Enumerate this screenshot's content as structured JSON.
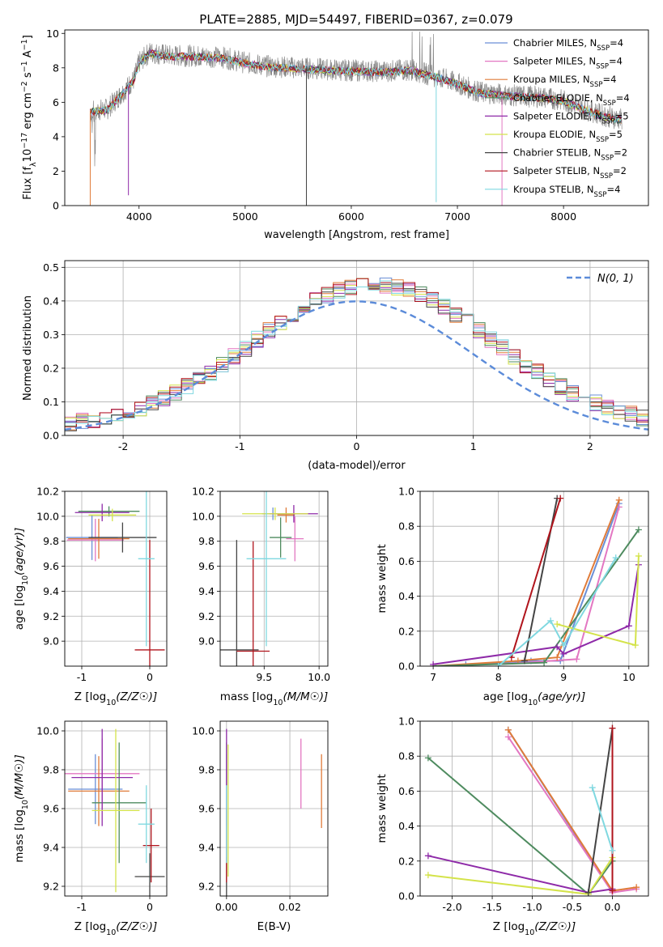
{
  "figure": {
    "title": "PLATE=2885, MJD=54497, FIBERID=0367, z=0.079"
  },
  "models": [
    {
      "label": "Chabrier MILES, N",
      "sub": "SSP",
      "suffix": "=4",
      "color": "#6b8fd6"
    },
    {
      "label": "Salpeter MILES, N",
      "sub": "SSP",
      "suffix": "=4",
      "color": "#e377c2"
    },
    {
      "label": "Kroupa MILES, N",
      "sub": "SSP",
      "suffix": "=4",
      "color": "#e07b39"
    },
    {
      "label": "Chabrier ELODIE, N",
      "sub": "SSP",
      "suffix": "=4",
      "color": "#4e8b5f"
    },
    {
      "label": "Salpeter ELODIE, N",
      "sub": "SSP",
      "suffix": "=5",
      "color": "#8e2aa8"
    },
    {
      "label": "Kroupa ELODIE, N",
      "sub": "SSP",
      "suffix": "=5",
      "color": "#d4e34a"
    },
    {
      "label": "Chabrier STELIB, N",
      "sub": "SSP",
      "suffix": "=2",
      "color": "#444444"
    },
    {
      "label": "Salpeter STELIB, N",
      "sub": "SSP",
      "suffix": "=2",
      "color": "#b0141c"
    },
    {
      "label": "Kroupa STELIB, N",
      "sub": "SSP",
      "suffix": "=4",
      "color": "#7fd8e0"
    }
  ],
  "chart_data": [
    {
      "id": "spectrum",
      "type": "line",
      "xlabel": "wavelength [Angstrom, rest frame]",
      "ylabel": "Flux [f",
      "xlim": [
        3300,
        8800
      ],
      "ylim": [
        0,
        10.2
      ],
      "xticks": [
        4000,
        5000,
        6000,
        7000,
        8000
      ],
      "yticks": [
        0,
        2,
        4,
        6,
        8,
        10
      ],
      "data_color": "#888888",
      "continuum": [
        [
          3540,
          5.5
        ],
        [
          3700,
          5.6
        ],
        [
          3850,
          6.6
        ],
        [
          3950,
          7.3
        ],
        [
          4000,
          8.3
        ],
        [
          4100,
          8.9
        ],
        [
          4300,
          8.7
        ],
        [
          4500,
          8.7
        ],
        [
          4800,
          8.6
        ],
        [
          5000,
          8.3
        ],
        [
          5200,
          8.1
        ],
        [
          5500,
          8.0
        ],
        [
          5800,
          7.9
        ],
        [
          6000,
          7.85
        ],
        [
          6300,
          7.8
        ],
        [
          6560,
          7.9
        ],
        [
          6800,
          7.5
        ],
        [
          7000,
          7.1
        ],
        [
          7200,
          6.6
        ],
        [
          7500,
          6.4
        ],
        [
          7800,
          6.3
        ],
        [
          8000,
          6.1
        ],
        [
          8200,
          5.6
        ],
        [
          8400,
          5.2
        ],
        [
          8550,
          5.0
        ]
      ]
    },
    {
      "id": "residuals",
      "type": "step",
      "xlabel": "(data-model)/error",
      "ylabel": "Normed distribution",
      "xlim": [
        -2.5,
        2.5
      ],
      "ylim": [
        0,
        0.52
      ],
      "xticks": [
        -2,
        -1,
        0,
        1,
        2
      ],
      "yticks": [
        0.0,
        0.1,
        0.2,
        0.3,
        0.4,
        0.5
      ],
      "normal_label": "N(0, 1)",
      "bin_width": 0.1
    },
    {
      "id": "age-vs-Z",
      "type": "errorbar",
      "xlabel": "Z [log10(Z/Z☉)]",
      "ylabel": "age  [log10(age/yr)]",
      "xlim": [
        -1.25,
        0.25
      ],
      "ylim": [
        8.8,
        10.2
      ],
      "xticks": [
        -1,
        0
      ],
      "yticks": [
        9.0,
        9.2,
        9.4,
        9.6,
        9.8,
        10.0,
        10.2
      ],
      "points": [
        {
          "m": 0,
          "x": -0.85,
          "xerr": 0.38,
          "y": 9.83,
          "yerr": 0.18
        },
        {
          "m": 1,
          "x": -0.8,
          "xerr": 0.42,
          "y": 9.81,
          "yerr": 0.17
        },
        {
          "m": 2,
          "x": -0.75,
          "xerr": 0.45,
          "y": 9.82,
          "yerr": 0.16
        },
        {
          "m": 3,
          "x": -0.6,
          "xerr": 0.45,
          "y": 10.04,
          "yerr": 0.04
        },
        {
          "m": 4,
          "x": -0.7,
          "xerr": 0.4,
          "y": 10.03,
          "yerr": 0.07
        },
        {
          "m": 5,
          "x": -0.55,
          "xerr": 0.35,
          "y": 10.01,
          "yerr": 0.05
        },
        {
          "m": 6,
          "x": -0.4,
          "xerr": 0.5,
          "y": 9.83,
          "yerr": 0.12
        },
        {
          "m": 7,
          "x": 0.0,
          "xerr": 0.22,
          "y": 8.93,
          "yerr": 0.88
        },
        {
          "m": 8,
          "x": -0.05,
          "xerr": 0.12,
          "y": 9.66,
          "yerr": 0.7
        }
      ]
    },
    {
      "id": "age-vs-mass",
      "type": "errorbar",
      "xlabel": "mass [log10(M/M☉)]",
      "ylabel": "",
      "xlim": [
        9.1,
        10.08
      ],
      "ylim": [
        8.8,
        10.2
      ],
      "xticks": [
        9.5,
        10.0
      ],
      "yticks": [
        9.0,
        9.2,
        9.4,
        9.6,
        9.8,
        10.0,
        10.2
      ],
      "points": [
        {
          "m": 0,
          "x": 9.58,
          "xerr": 0.1,
          "y": 10.02,
          "yerr": 0.05
        },
        {
          "m": 1,
          "x": 9.78,
          "xerr": 0.08,
          "y": 9.82,
          "yerr": 0.18
        },
        {
          "m": 2,
          "x": 9.7,
          "xerr": 0.08,
          "y": 10.01,
          "yerr": 0.06
        },
        {
          "m": 3,
          "x": 9.65,
          "xerr": 0.1,
          "y": 9.83,
          "yerr": 0.16
        },
        {
          "m": 4,
          "x": 9.77,
          "xerr": 0.22,
          "y": 10.02,
          "yerr": 0.07
        },
        {
          "m": 5,
          "x": 9.6,
          "xerr": 0.3,
          "y": 10.02,
          "yerr": 0.05
        },
        {
          "m": 6,
          "x": 9.25,
          "xerr": 0.2,
          "y": 8.93,
          "yerr": 0.88
        },
        {
          "m": 7,
          "x": 9.4,
          "xerr": 0.15,
          "y": 8.92,
          "yerr": 0.88
        },
        {
          "m": 8,
          "x": 9.52,
          "xerr": 0.18,
          "y": 9.66,
          "yerr": 0.7
        }
      ]
    },
    {
      "id": "weight-vs-age",
      "type": "line",
      "xlabel": "age  [log10(age/yr)]",
      "ylabel": "mass weight",
      "xlim": [
        6.8,
        10.3
      ],
      "ylim": [
        0,
        1.0
      ],
      "xticks": [
        7,
        8,
        9,
        10
      ],
      "yticks": [
        0.0,
        0.2,
        0.4,
        0.6,
        0.8,
        1.0
      ],
      "series": [
        {
          "m": 0,
          "x": [
            7.5,
            8.5,
            8.95,
            9.85
          ],
          "y": [
            0.01,
            0.03,
            0.03,
            0.93
          ]
        },
        {
          "m": 1,
          "x": [
            8.0,
            9.2,
            9.85
          ],
          "y": [
            0.01,
            0.04,
            0.91
          ]
        },
        {
          "m": 2,
          "x": [
            7.0,
            8.3,
            8.9,
            9.85
          ],
          "y": [
            0.0,
            0.03,
            0.05,
            0.95
          ]
        },
        {
          "m": 3,
          "x": [
            7.0,
            8.7,
            10.15
          ],
          "y": [
            0.0,
            0.02,
            0.78
          ]
        },
        {
          "m": 4,
          "x": [
            7.0,
            8.9,
            9.0,
            10.0,
            10.15
          ],
          "y": [
            0.01,
            0.11,
            0.07,
            0.23,
            0.58
          ]
        },
        {
          "m": 5,
          "x": [
            8.9,
            10.1,
            10.15
          ],
          "y": [
            0.24,
            0.12,
            0.63
          ]
        },
        {
          "m": 6,
          "x": [
            8.4,
            8.9
          ],
          "y": [
            0.03,
            0.96
          ]
        },
        {
          "m": 7,
          "x": [
            8.2,
            8.95
          ],
          "y": [
            0.05,
            0.96
          ]
        },
        {
          "m": 8,
          "x": [
            8.0,
            8.8,
            9.0,
            9.8
          ],
          "y": [
            0.0,
            0.26,
            0.12,
            0.62
          ]
        }
      ]
    },
    {
      "id": "mass-vs-Z",
      "type": "errorbar",
      "xlabel": "Z [log10(Z/Z☉)]",
      "ylabel": "mass [log10(M/M☉)]",
      "xlim": [
        -1.25,
        0.25
      ],
      "ylim": [
        9.15,
        10.05
      ],
      "xticks": [
        -1,
        0
      ],
      "yticks": [
        9.2,
        9.4,
        9.6,
        9.8,
        10.0
      ],
      "points": [
        {
          "m": 0,
          "x": -0.8,
          "xerr": 0.4,
          "y": 9.7,
          "yerr": 0.18
        },
        {
          "m": 1,
          "x": -0.7,
          "xerr": 0.55,
          "y": 9.78,
          "yerr": 0.18
        },
        {
          "m": 2,
          "x": -0.75,
          "xerr": 0.45,
          "y": 9.69,
          "yerr": 0.18
        },
        {
          "m": 3,
          "x": -0.45,
          "xerr": 0.4,
          "y": 9.63,
          "yerr": 0.31
        },
        {
          "m": 4,
          "x": -0.7,
          "xerr": 0.45,
          "y": 9.76,
          "yerr": 0.25
        },
        {
          "m": 5,
          "x": -0.5,
          "xerr": 0.35,
          "y": 9.59,
          "yerr": 0.42
        },
        {
          "m": 6,
          "x": 0.0,
          "xerr": 0.22,
          "y": 9.25,
          "yerr": 0.12
        },
        {
          "m": 7,
          "x": 0.02,
          "xerr": 0.12,
          "y": 9.41,
          "yerr": 0.19
        },
        {
          "m": 8,
          "x": -0.05,
          "xerr": 0.12,
          "y": 9.52,
          "yerr": 0.2
        }
      ]
    },
    {
      "id": "mass-vs-EBV",
      "type": "errorbar",
      "xlabel": "E(B-V)",
      "ylabel": "",
      "xlim": [
        -0.002,
        0.032
      ],
      "ylim": [
        9.15,
        10.05
      ],
      "xticks": [
        0.0,
        0.02
      ],
      "yticks": [
        9.2,
        9.4,
        9.6,
        9.8,
        10.0
      ],
      "points": [
        {
          "m": 0,
          "x": 0.0,
          "xerr": 0,
          "y": 9.7,
          "yerr": 0.18
        },
        {
          "m": 1,
          "x": 0.0235,
          "xerr": 0,
          "y": 9.78,
          "yerr": 0.18
        },
        {
          "m": 2,
          "x": 0.03,
          "xerr": 0,
          "y": 9.69,
          "yerr": 0.19
        },
        {
          "m": 3,
          "x": 0.0,
          "xerr": 0,
          "y": 9.63,
          "yerr": 0.31
        },
        {
          "m": 4,
          "x": 0.0,
          "xerr": 0,
          "y": 9.76,
          "yerr": 0.25
        },
        {
          "m": 5,
          "x": 0.0005,
          "xerr": 0,
          "y": 9.59,
          "yerr": 0.34
        },
        {
          "m": 6,
          "x": 0.0,
          "xerr": 0,
          "y": 9.25,
          "yerr": 0.1
        },
        {
          "m": 7,
          "x": 0.0,
          "xerr": 0,
          "y": 9.41,
          "yerr": 0.19
        },
        {
          "m": 8,
          "x": 0.0,
          "xerr": 0,
          "y": 9.52,
          "yerr": 0.2
        }
      ]
    },
    {
      "id": "weight-vs-Z",
      "type": "line",
      "xlabel": "Z [log10(Z/Z☉)]",
      "ylabel": "mass weight",
      "xlim": [
        -2.4,
        0.45
      ],
      "ylim": [
        0,
        1.0
      ],
      "xticks": [
        -2.0,
        -1.5,
        -1.0,
        -0.5,
        0.0
      ],
      "yticks": [
        0.0,
        0.2,
        0.4,
        0.6,
        0.8,
        1.0
      ],
      "series": [
        {
          "m": 0,
          "x": [
            -1.3,
            0.0
          ],
          "y": [
            0.95,
            0.02
          ]
        },
        {
          "m": 1,
          "x": [
            -1.3,
            0.0,
            0.3
          ],
          "y": [
            0.91,
            0.02,
            0.04
          ]
        },
        {
          "m": 2,
          "x": [
            -1.3,
            0.0,
            0.3
          ],
          "y": [
            0.95,
            0.03,
            0.05
          ]
        },
        {
          "m": 3,
          "x": [
            -2.3,
            -0.3,
            0.0
          ],
          "y": [
            0.79,
            0.01,
            0.2
          ]
        },
        {
          "m": 4,
          "x": [
            -2.3,
            -0.3,
            0.0
          ],
          "y": [
            0.23,
            0.02,
            0.04
          ]
        },
        {
          "m": 5,
          "x": [
            -2.3,
            -0.3,
            0.0
          ],
          "y": [
            0.12,
            0.01,
            0.22
          ]
        },
        {
          "m": 6,
          "x": [
            -0.3,
            0.0
          ],
          "y": [
            0.02,
            0.96
          ]
        },
        {
          "m": 7,
          "x": [
            0.0,
            0.0
          ],
          "y": [
            0.03,
            0.96
          ]
        },
        {
          "m": 8,
          "x": [
            -0.25,
            0.0
          ],
          "y": [
            0.62,
            0.26
          ]
        }
      ]
    }
  ]
}
